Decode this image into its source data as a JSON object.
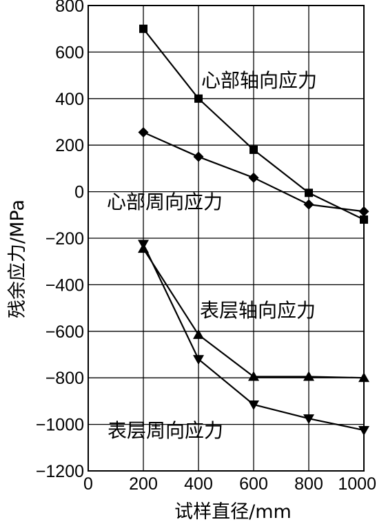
{
  "chart_data": {
    "type": "line",
    "xlabel": "试样直径/mm",
    "ylabel": "残余应力/MPa",
    "xlim": [
      0,
      1000
    ],
    "ylim": [
      -1200,
      800
    ],
    "xticks": [
      "0",
      "200",
      "400",
      "600",
      "800",
      "1000"
    ],
    "yticks": [
      "800",
      "600",
      "400",
      "200",
      "0",
      "-200",
      "-400",
      "-600",
      "-800",
      "-1000",
      "-1200"
    ],
    "grid": true,
    "x": [
      200,
      400,
      600,
      800,
      1000
    ],
    "series": [
      {
        "name": "心部轴向应力",
        "marker": "square",
        "values": [
          700,
          400,
          180,
          -5,
          -120
        ]
      },
      {
        "name": "心部周向应力",
        "marker": "diamond",
        "values": [
          255,
          150,
          60,
          -55,
          -85
        ]
      },
      {
        "name": "表层轴向应力",
        "marker": "triangle-up",
        "values": [
          -245,
          -615,
          -795,
          -795,
          -800
        ]
      },
      {
        "name": "表层周向应力",
        "marker": "triangle-down",
        "values": [
          -225,
          -720,
          -915,
          -975,
          -1025
        ]
      }
    ]
  }
}
